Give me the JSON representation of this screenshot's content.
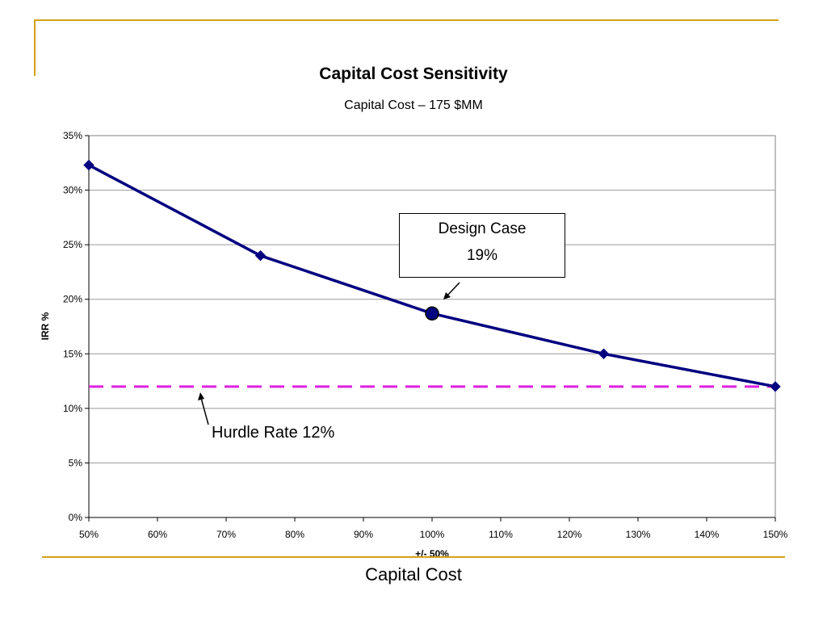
{
  "slide": {
    "caption": "Capital Cost",
    "accent_color": "#d4a017"
  },
  "chart_data": {
    "type": "line",
    "title": "Capital Cost Sensitivity",
    "subtitle": "Capital Cost – 175 $MM",
    "xlabel": "+/- 50%",
    "ylabel": "IRR %",
    "xlim": [
      50,
      150
    ],
    "ylim": [
      0,
      35
    ],
    "x_ticks": [
      "50%",
      "60%",
      "70%",
      "80%",
      "90%",
      "100%",
      "110%",
      "120%",
      "130%",
      "140%",
      "150%"
    ],
    "y_ticks": [
      "0%",
      "5%",
      "10%",
      "15%",
      "20%",
      "25%",
      "30%",
      "35%"
    ],
    "grid": true,
    "series": [
      {
        "color": "#000080",
        "marker": "diamond",
        "x": [
          50,
          75,
          100,
          125,
          150
        ],
        "y": [
          32.3,
          24.0,
          18.7,
          15.0,
          12.0
        ]
      }
    ],
    "highlight_point": {
      "x": 100,
      "y": 18.7
    },
    "hurdle": {
      "y": 12,
      "color": "#e020e0",
      "style": "dashed"
    },
    "annotations": {
      "design_case": {
        "line1": "Design Case",
        "line2": "19%"
      },
      "hurdle_label": "Hurdle Rate 12%"
    }
  }
}
